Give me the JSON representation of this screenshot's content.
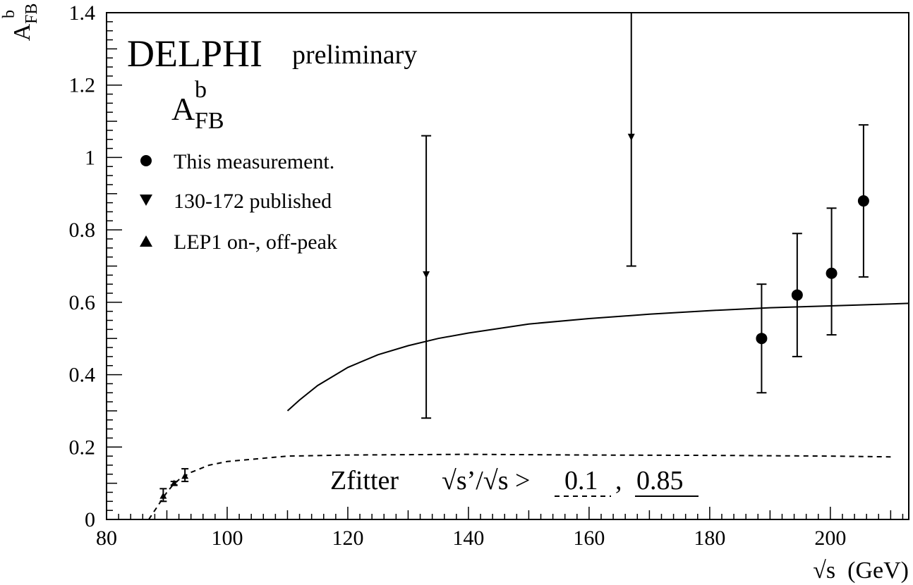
{
  "chart_data": {
    "type": "scatter",
    "title": "DELPHI",
    "subtitle": "preliminary",
    "observable": {
      "base": "A",
      "sub": "FB",
      "sup": "b"
    },
    "ylabel": {
      "base": "A",
      "sub": "FB",
      "sup": "b"
    },
    "xlabel": "√s  (GeV)",
    "xlim": [
      80,
      213
    ],
    "ylim": [
      0,
      1.4
    ],
    "x_ticks": [
      80,
      100,
      120,
      140,
      160,
      180,
      200
    ],
    "y_ticks": [
      0,
      0.2,
      0.4,
      0.6,
      0.8,
      1,
      1.2,
      1.4
    ],
    "y_tick_labels": [
      "0",
      "0.2",
      "0.4",
      "0.6",
      "0.8",
      "1",
      "1.2",
      "1.4"
    ],
    "grid": false,
    "legend_position": "top-left",
    "legend": [
      {
        "marker": "circle",
        "label": "This measurement."
      },
      {
        "marker": "triangle-down",
        "label": "130-172 published"
      },
      {
        "marker": "triangle-up",
        "label": "LEP1 on-, off-peak"
      }
    ],
    "series": [
      {
        "name": "This measurement.",
        "marker": "circle",
        "points": [
          {
            "x": 188.6,
            "y": 0.5,
            "y_low": 0.35,
            "y_high": 0.65
          },
          {
            "x": 194.5,
            "y": 0.62,
            "y_low": 0.45,
            "y_high": 0.79
          },
          {
            "x": 200.2,
            "y": 0.68,
            "y_low": 0.51,
            "y_high": 0.86
          },
          {
            "x": 205.5,
            "y": 0.88,
            "y_low": 0.67,
            "y_high": 1.09
          }
        ]
      },
      {
        "name": "130-172 published",
        "marker": "triangle-down",
        "points": [
          {
            "x": 133.0,
            "y": 0.67,
            "y_low": 0.28,
            "y_high": 1.06
          },
          {
            "x": 167.0,
            "y": 1.05,
            "y_low": 0.7,
            "y_high": 1.4
          }
        ]
      },
      {
        "name": "LEP1 on-, off-peak",
        "marker": "triangle-up",
        "points": [
          {
            "x": 89.4,
            "y": 0.065,
            "y_low": 0.05,
            "y_high": 0.085
          },
          {
            "x": 91.2,
            "y": 0.1,
            "y_low": 0.095,
            "y_high": 0.105
          },
          {
            "x": 93.0,
            "y": 0.12,
            "y_low": 0.105,
            "y_high": 0.14
          }
        ]
      }
    ],
    "curves": [
      {
        "label": "0.85",
        "style": "solid",
        "points": [
          [
            110,
            0.3
          ],
          [
            112,
            0.33
          ],
          [
            115,
            0.37
          ],
          [
            120,
            0.42
          ],
          [
            125,
            0.455
          ],
          [
            130,
            0.48
          ],
          [
            135,
            0.5
          ],
          [
            140,
            0.515
          ],
          [
            150,
            0.54
          ],
          [
            160,
            0.555
          ],
          [
            170,
            0.567
          ],
          [
            180,
            0.577
          ],
          [
            190,
            0.585
          ],
          [
            200,
            0.59
          ],
          [
            213,
            0.597
          ]
        ]
      },
      {
        "label": "0.1",
        "style": "dashed",
        "points": [
          [
            87,
            0.0
          ],
          [
            88,
            0.025
          ],
          [
            89,
            0.05
          ],
          [
            90,
            0.075
          ],
          [
            91,
            0.095
          ],
          [
            92,
            0.11
          ],
          [
            94,
            0.13
          ],
          [
            97,
            0.15
          ],
          [
            100,
            0.16
          ],
          [
            110,
            0.175
          ],
          [
            120,
            0.178
          ],
          [
            140,
            0.18
          ],
          [
            160,
            0.178
          ],
          [
            180,
            0.177
          ],
          [
            200,
            0.175
          ],
          [
            210,
            0.173
          ]
        ]
      }
    ],
    "annotation": {
      "model": "Zfitter",
      "cut": "√s’/√s >",
      "cut_values": [
        "0.1",
        "0.85"
      ],
      "separator": ","
    }
  }
}
